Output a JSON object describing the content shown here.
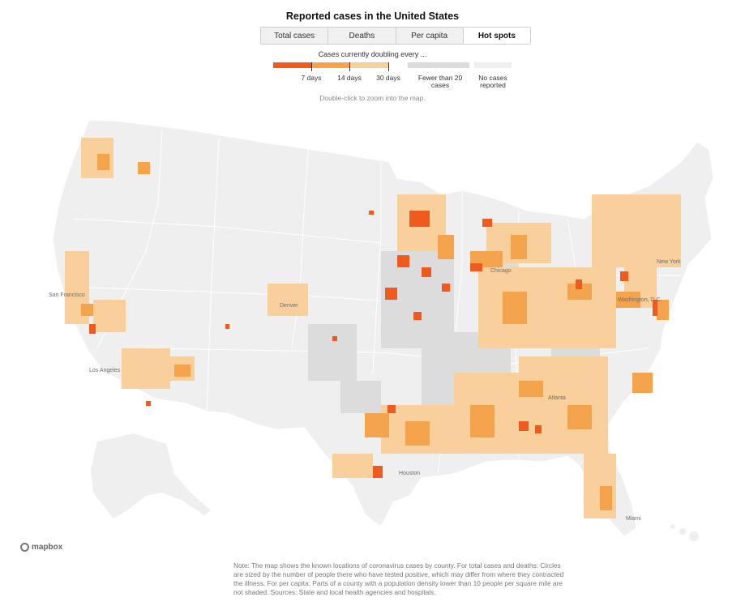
{
  "title": "Reported cases in the United States",
  "tabs": [
    {
      "label": "Total cases",
      "active": false
    },
    {
      "label": "Deaths",
      "active": false
    },
    {
      "label": "Per capita",
      "active": false
    },
    {
      "label": "Hot spots",
      "active": true
    }
  ],
  "legend": {
    "title": "Cases currently doubling every ...",
    "labels": {
      "d7": "7 days",
      "d14": "14 days",
      "d30": "30 days",
      "few": "Fewer than 20 cases",
      "none": "No cases reported"
    },
    "colors": {
      "d7": "#ef5a1e",
      "d14": "#f4a44d",
      "d30": "#f9d09c",
      "few": "#dcdcdc",
      "none": "#efefef"
    }
  },
  "hint": "Double-click to zoom into the map.",
  "cities": {
    "san_francisco": "San Francisco",
    "los_angeles": "Los Angeles",
    "denver": "Denver",
    "chicago": "Chicago",
    "new_york": "New York",
    "washington": "Washington, D.C.",
    "atlanta": "Atlanta",
    "houston": "Houston",
    "miami": "Miami"
  },
  "attribution": "mapbox",
  "note": "Note: The map shows the known locations of coronavirus cases by county. For total cases and deaths: Circles are sized by the number of people there who have tested positive, which may differ from where they contracted the illness. For per capita: Parts of a county with a population density lower than 10 people per square mile are not shaded. Sources: State and local health agencies and hospitals."
}
